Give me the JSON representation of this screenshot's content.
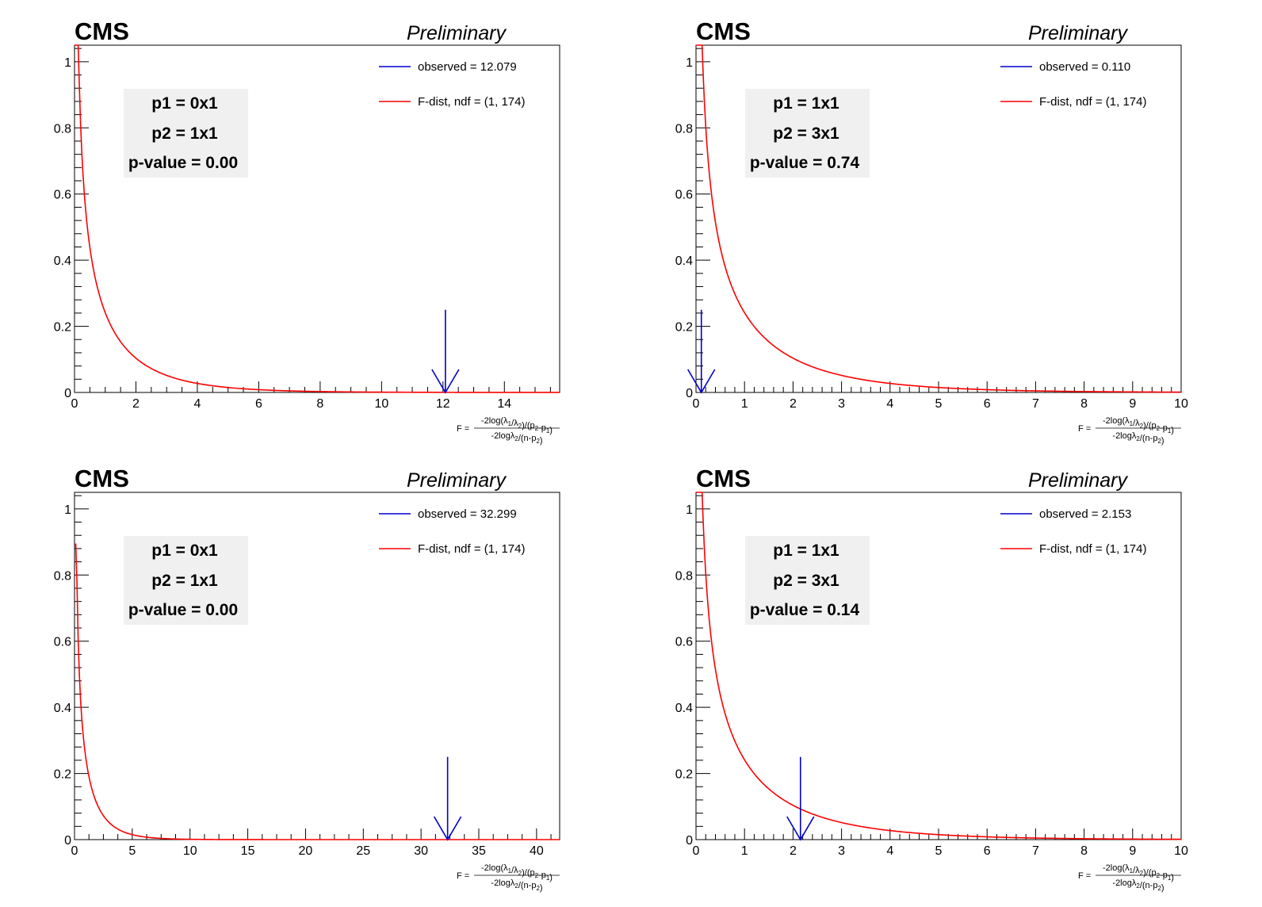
{
  "colors": {
    "observed": "#0000cc",
    "fdist": "#ff0000",
    "infobox": "#f0f0f0",
    "axis": "#000000"
  },
  "chart_data": [
    {
      "type": "line",
      "header": {
        "experiment": "CMS",
        "status": "Preliminary"
      },
      "info": {
        "p1": "p1 = 0x1",
        "p2": "p2 = 1x1",
        "pvalue": "p-value = 0.00"
      },
      "legend": {
        "observed": "observed = 12.079",
        "fdist": "F-dist, ndf = (1, 174)"
      },
      "xlabel": {
        "prefix": "F =",
        "numerator": "-2log(λ1/λ2)/(p2-p1)",
        "denominator": "-2logλ2/(n-p2)"
      },
      "xlim": [
        0,
        15.8
      ],
      "ylim": [
        0,
        1.05
      ],
      "xticks": [
        0,
        2,
        4,
        6,
        8,
        10,
        12,
        14
      ],
      "yticks": [
        0,
        0.2,
        0.4,
        0.6,
        0.8,
        1
      ],
      "ytick_labels": [
        "0",
        "0.2",
        "0.4",
        "0.6",
        "0.8",
        "1"
      ],
      "observed": 12.079,
      "ndf": [
        1,
        174
      ]
    },
    {
      "type": "line",
      "header": {
        "experiment": "CMS",
        "status": "Preliminary"
      },
      "info": {
        "p1": "p1 = 1x1",
        "p2": "p2 = 3x1",
        "pvalue": "p-value = 0.74"
      },
      "legend": {
        "observed": "observed = 0.110",
        "fdist": "F-dist, ndf = (1, 174)"
      },
      "xlabel": {
        "prefix": "F =",
        "numerator": "-2log(λ1/λ2)/(p2-p1)",
        "denominator": "-2logλ2/(n-p2)"
      },
      "xlim": [
        0,
        10
      ],
      "ylim": [
        0,
        1.05
      ],
      "xticks": [
        0,
        1,
        2,
        3,
        4,
        5,
        6,
        7,
        8,
        9,
        10
      ],
      "yticks": [
        0,
        0.2,
        0.4,
        0.6,
        0.8,
        1
      ],
      "ytick_labels": [
        "0",
        "0.2",
        "0.4",
        "0.6",
        "0.8",
        "1"
      ],
      "observed": 0.11,
      "ndf": [
        1,
        174
      ]
    },
    {
      "type": "line",
      "header": {
        "experiment": "CMS",
        "status": "Preliminary"
      },
      "info": {
        "p1": "p1 = 0x1",
        "p2": "p2 = 1x1",
        "pvalue": "p-value = 0.00"
      },
      "legend": {
        "observed": "observed = 32.299",
        "fdist": "F-dist, ndf = (1, 174)"
      },
      "xlabel": {
        "prefix": "F =",
        "numerator": "-2log(λ1/λ2)/(p2-p1)",
        "denominator": "-2logλ2/(n-p2)"
      },
      "xlim": [
        0,
        42
      ],
      "ylim": [
        0,
        1.05
      ],
      "xticks": [
        0,
        5,
        10,
        15,
        20,
        25,
        30,
        35,
        40
      ],
      "yticks": [
        0,
        0.2,
        0.4,
        0.6,
        0.8,
        1
      ],
      "ytick_labels": [
        "0",
        "0.2",
        "0.4",
        "0.6",
        "0.8",
        "1"
      ],
      "observed": 32.299,
      "ndf": [
        1,
        174
      ]
    },
    {
      "type": "line",
      "header": {
        "experiment": "CMS",
        "status": "Preliminary"
      },
      "info": {
        "p1": "p1 = 1x1",
        "p2": "p2 = 3x1",
        "pvalue": "p-value = 0.14"
      },
      "legend": {
        "observed": "observed = 2.153",
        "fdist": "F-dist, ndf = (1, 174)"
      },
      "xlabel": {
        "prefix": "F =",
        "numerator": "-2log(λ1/λ2)/(p2-p1)",
        "denominator": "-2logλ2/(n-p2)"
      },
      "xlim": [
        0,
        10
      ],
      "ylim": [
        0,
        1.05
      ],
      "xticks": [
        0,
        1,
        2,
        3,
        4,
        5,
        6,
        7,
        8,
        9,
        10
      ],
      "yticks": [
        0,
        0.2,
        0.4,
        0.6,
        0.8,
        1
      ],
      "ytick_labels": [
        "0",
        "0.2",
        "0.4",
        "0.6",
        "0.8",
        "1"
      ],
      "observed": 2.153,
      "ndf": [
        1,
        174
      ]
    }
  ]
}
